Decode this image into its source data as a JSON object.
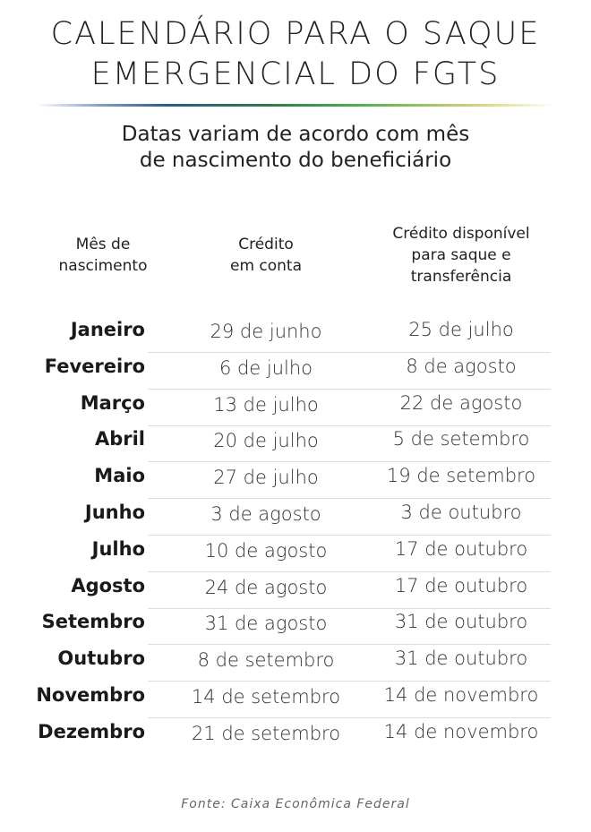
{
  "title": {
    "line1": "CALENDÁRIO PARA O SAQUE",
    "line2": "EMERGENCIAL DO FGTS"
  },
  "subtitle": {
    "line1": "Datas variam de acordo com mês",
    "line2": "de nascimento do beneficiário"
  },
  "headers": {
    "col1": [
      "Mês de",
      "nascimento"
    ],
    "col2": [
      "Crédito",
      "em conta"
    ],
    "col3": [
      "Crédito disponível",
      "para saque e",
      "transferência"
    ]
  },
  "rows": [
    {
      "month": "Janeiro",
      "credit": "29 de junho",
      "available": "25 de julho"
    },
    {
      "month": "Fevereiro",
      "credit": "6 de julho",
      "available": "8 de agosto"
    },
    {
      "month": "Março",
      "credit": "13 de julho",
      "available": "22 de agosto"
    },
    {
      "month": "Abril",
      "credit": "20 de julho",
      "available": "5 de setembro"
    },
    {
      "month": "Maio",
      "credit": "27 de julho",
      "available": "19 de setembro"
    },
    {
      "month": "Junho",
      "credit": "3 de agosto",
      "available": "3 de outubro"
    },
    {
      "month": "Julho",
      "credit": "10 de agosto",
      "available": "17 de outubro"
    },
    {
      "month": "Agosto",
      "credit": "24 de agosto",
      "available": "17 de outubro"
    },
    {
      "month": "Setembro",
      "credit": "31 de agosto",
      "available": "31 de outubro"
    },
    {
      "month": "Outubro",
      "credit": "8 de setembro",
      "available": "31 de outubro"
    },
    {
      "month": "Novembro",
      "credit": "14 de setembro",
      "available": "14 de novembro"
    },
    {
      "month": "Dezembro",
      "credit": "21 de setembro",
      "available": "14 de novembro"
    }
  ],
  "source": "Fonte: Caixa Econômica Federal"
}
